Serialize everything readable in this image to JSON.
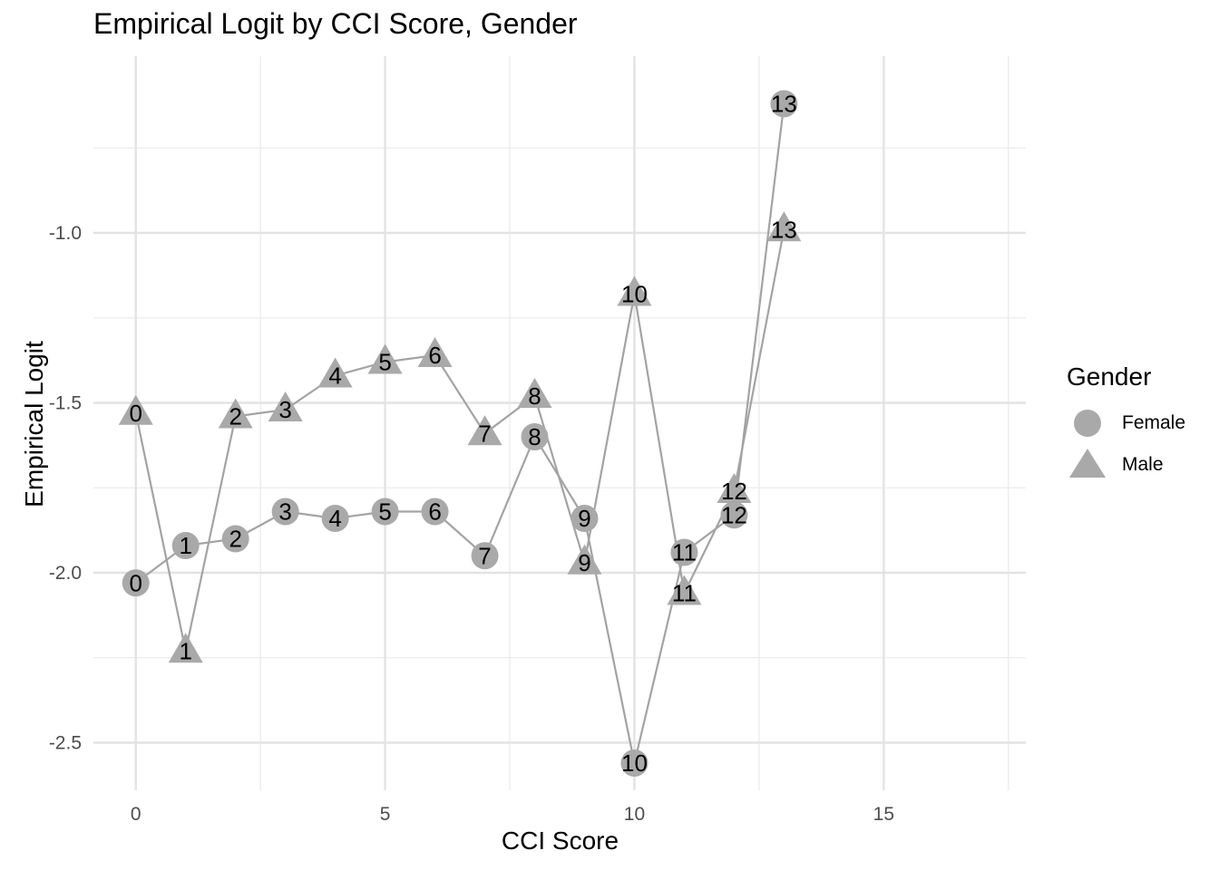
{
  "chart_data": {
    "type": "line",
    "title": "Empirical Logit by CCI Score, Gender",
    "xlabel": "CCI Score",
    "ylabel": "Empirical Logit",
    "xlim": [
      -0.85,
      17.85
    ],
    "ylim": [
      -2.64,
      -0.48
    ],
    "x_ticks": [
      0,
      5,
      10,
      15
    ],
    "y_ticks": [
      -2.5,
      -2.0,
      -1.5,
      -1.0
    ],
    "x_tick_labels": [
      "0",
      "5",
      "10",
      "15"
    ],
    "y_tick_labels": [
      "-2.5",
      "-2.0",
      "-1.5",
      "-1.0"
    ],
    "grid": true,
    "legend": {
      "title": "Gender",
      "position": "right"
    },
    "series": [
      {
        "name": "Female",
        "marker": "circle",
        "color": "#a9a9a9",
        "x": [
          0,
          1,
          2,
          3,
          4,
          5,
          6,
          7,
          8,
          9,
          10,
          11,
          12,
          13
        ],
        "y": [
          -2.03,
          -1.92,
          -1.9,
          -1.82,
          -1.84,
          -1.82,
          -1.82,
          -1.95,
          -1.6,
          -1.84,
          -2.56,
          -1.94,
          -1.83,
          -0.62
        ],
        "labels": [
          "0",
          "1",
          "2",
          "3",
          "4",
          "5",
          "6",
          "7",
          "8",
          "9",
          "10",
          "11",
          "12",
          "13"
        ]
      },
      {
        "name": "Male",
        "marker": "triangle",
        "color": "#a9a9a9",
        "x": [
          0,
          1,
          2,
          3,
          4,
          5,
          6,
          7,
          8,
          9,
          10,
          11,
          12,
          13
        ],
        "y": [
          -1.53,
          -2.23,
          -1.54,
          -1.52,
          -1.42,
          -1.38,
          -1.36,
          -1.59,
          -1.48,
          -1.97,
          -1.18,
          -2.06,
          -1.76,
          -0.99
        ],
        "labels": [
          "0",
          "1",
          "2",
          "3",
          "4",
          "5",
          "6",
          "7",
          "8",
          "9",
          "10",
          "11",
          "12",
          "13"
        ]
      }
    ]
  }
}
